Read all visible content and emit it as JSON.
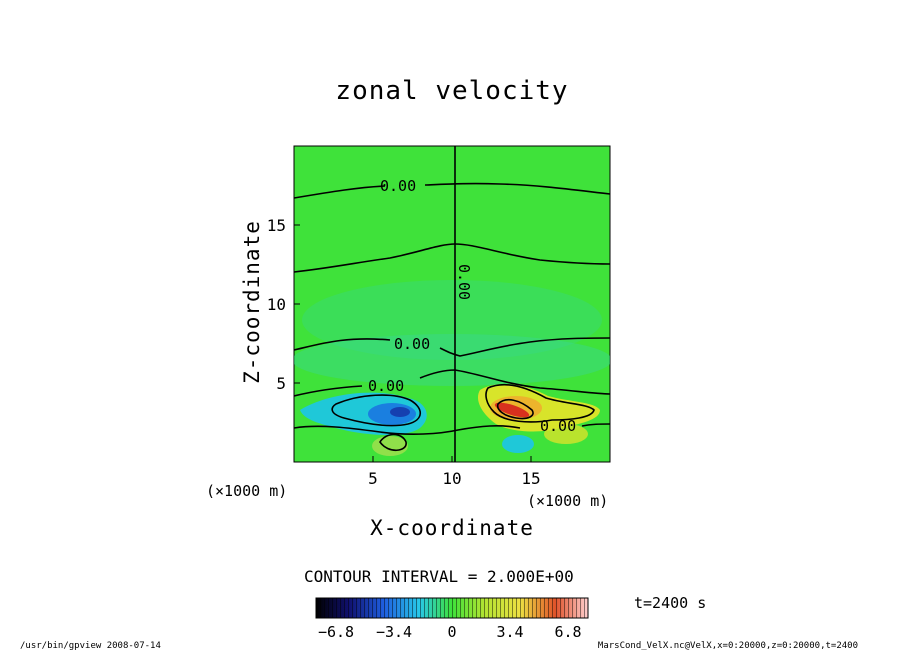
{
  "chart_data": {
    "type": "heatmap",
    "title": "zonal velocity",
    "xlabel": "X-coordinate",
    "ylabel": "Z-coordinate",
    "xlim": [
      0,
      20
    ],
    "ylim": [
      0,
      20
    ],
    "x_ticks": [
      "5",
      "10",
      "15"
    ],
    "y_ticks": [
      "5",
      "10",
      "15"
    ],
    "x_unit_left": "(×1000 m)",
    "x_unit_right": "(×1000 m)",
    "contour_interval_text": "CONTOUR INTERVAL = 2.000E+00",
    "contour_labels": [
      "0.00",
      "0.00",
      "0.00",
      "0.00",
      "0.00"
    ],
    "colorbar": {
      "min": -8,
      "max": 8,
      "ticks": [
        "−6.8",
        "−3.4",
        "0",
        "3.4",
        "6.8"
      ]
    },
    "time_label": "t=2400 s"
  },
  "footer": {
    "left": "/usr/bin/gpview  2008-07-14",
    "right": "MarsCond_VelX.nc@VelX,x=0:20000,z=0:20000,t=2400"
  },
  "colors": {
    "background_green": "#3fe23a",
    "negative": "#19b7e3",
    "positive": "#d8e42a",
    "strong_positive": "#d8301e"
  }
}
